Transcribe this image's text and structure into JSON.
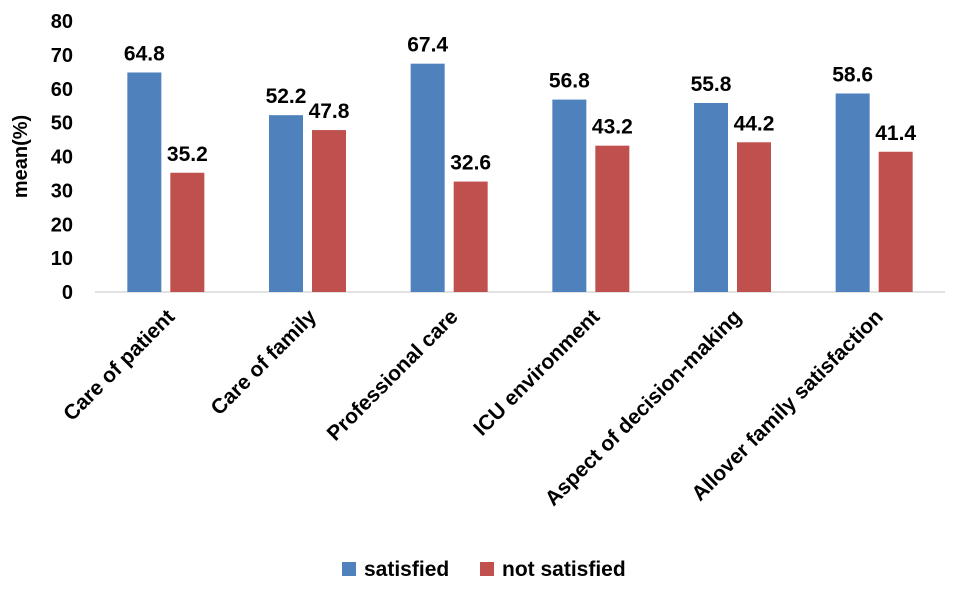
{
  "chart_data": {
    "type": "bar",
    "ylabel": "mean(%)",
    "ylim": [
      0,
      80
    ],
    "ytick_step": 10,
    "categories": [
      "Care of patient",
      "Care of family",
      "Professional care",
      "ICU environment",
      "Aspect of decision-making",
      "Allover family satisfaction"
    ],
    "series": [
      {
        "name": "satisfied",
        "color": "#4F81BD",
        "values": [
          64.8,
          52.2,
          67.4,
          56.8,
          55.8,
          58.6
        ]
      },
      {
        "name": "not satisfied",
        "color": "#C0504D",
        "values": [
          35.2,
          47.8,
          32.6,
          43.2,
          44.2,
          41.4
        ]
      }
    ],
    "grid": false,
    "legend": "bottom"
  }
}
